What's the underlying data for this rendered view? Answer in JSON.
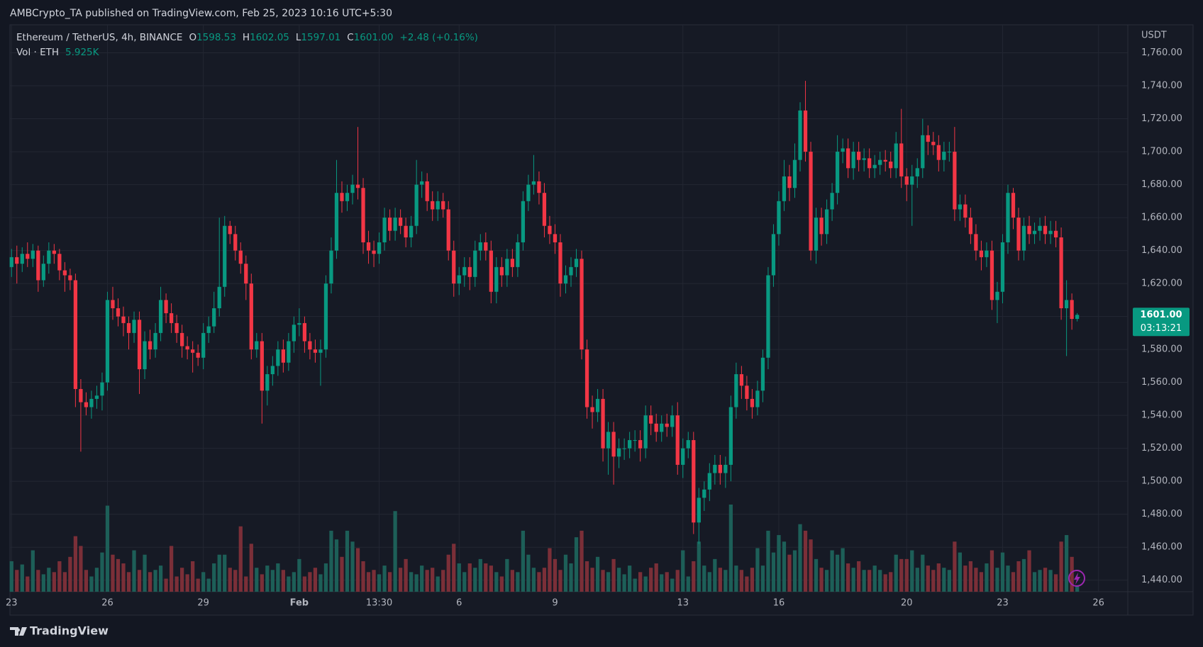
{
  "chart_data": {
    "type": "candlestick",
    "title": "AMBCrypto_TA published on TradingView.com, Feb 25, 2023 10:16 UTC+5:30",
    "symbol": "Ethereum / TetherUS, 4h, BINANCE",
    "ohlc_legend": [
      {
        "key": "O",
        "value": "1598.53"
      },
      {
        "key": "H",
        "value": "1602.05"
      },
      {
        "key": "L",
        "value": "1597.01"
      },
      {
        "key": "C",
        "value": "1601.00"
      }
    ],
    "change": "+2.48 (+0.16%)",
    "volume_title": "Vol · ETH",
    "volume_value": "5.925K",
    "currency": "USDT",
    "last_price_label": "1601.00",
    "countdown": "03:13:21",
    "brand": "TradingView",
    "up_color": "#089981",
    "down_color": "#f23645",
    "volume_up_color": "#1d5f58",
    "volume_down_color": "#7b2f38",
    "grid": true,
    "xlim": [
      -0.3,
      209.5
    ],
    "xticks": [
      {
        "value": 0,
        "label": "23"
      },
      {
        "value": 18,
        "label": "26"
      },
      {
        "value": 36,
        "label": "29"
      },
      {
        "value": 54,
        "label": "Feb"
      },
      {
        "value": 69,
        "label": "13:30"
      },
      {
        "value": 84,
        "label": "6"
      },
      {
        "value": 102,
        "label": "9"
      },
      {
        "value": 126,
        "label": "13"
      },
      {
        "value": 144,
        "label": "16"
      },
      {
        "value": 168,
        "label": "20"
      },
      {
        "value": 186,
        "label": "23"
      },
      {
        "value": 204,
        "label": "26"
      }
    ],
    "ylim": [
      1433,
      1777
    ],
    "yticks": [
      {
        "value": 1440,
        "label": "1,440.00"
      },
      {
        "value": 1460,
        "label": "1,460.00"
      },
      {
        "value": 1480,
        "label": "1,480.00"
      },
      {
        "value": 1500,
        "label": "1,500.00"
      },
      {
        "value": 1520,
        "label": "1,520.00"
      },
      {
        "value": 1540,
        "label": "1,540.00"
      },
      {
        "value": 1560,
        "label": "1,560.00"
      },
      {
        "value": 1580,
        "label": "1,580.00"
      },
      {
        "value": 1600,
        "label": "1,600.00"
      },
      {
        "value": 1620,
        "label": "1,620.00"
      },
      {
        "value": 1640,
        "label": "1,640.00"
      },
      {
        "value": 1660,
        "label": "1,660.00"
      },
      {
        "value": 1680,
        "label": "1,680.00"
      },
      {
        "value": 1700,
        "label": "1,700.00"
      },
      {
        "value": 1720,
        "label": "1,720.00"
      },
      {
        "value": 1740,
        "label": "1,740.00"
      },
      {
        "value": 1760,
        "label": "1,760.00"
      }
    ],
    "open": [
      1630,
      1636,
      1632,
      1638,
      1635,
      1640,
      1622,
      1632,
      1640,
      1638,
      1628,
      1625,
      1622,
      1556,
      1548,
      1545,
      1550,
      1552,
      1560,
      1610,
      1605,
      1600,
      1596,
      1590,
      1598,
      1568,
      1585,
      1580,
      1590,
      1610,
      1602,
      1596,
      1590,
      1582,
      1580,
      1578,
      1575,
      1590,
      1594,
      1605,
      1618,
      1655,
      1650,
      1640,
      1632,
      1620,
      1580,
      1585,
      1555,
      1565,
      1570,
      1580,
      1572,
      1585,
      1595,
      1596,
      1585,
      1580,
      1578,
      1580,
      1620,
      1640,
      1675,
      1670,
      1675,
      1680,
      1678,
      1645,
      1640,
      1638,
      1645,
      1660,
      1652,
      1660,
      1655,
      1648,
      1655,
      1680,
      1682,
      1670,
      1665,
      1670,
      1665,
      1640,
      1620,
      1625,
      1630,
      1624,
      1640,
      1645,
      1640,
      1615,
      1630,
      1625,
      1635,
      1630,
      1645,
      1670,
      1680,
      1682,
      1675,
      1655,
      1650,
      1645,
      1620,
      1625,
      1630,
      1635,
      1580,
      1545,
      1542,
      1550,
      1520,
      1530,
      1515,
      1520,
      1520,
      1525,
      1525,
      1520,
      1540,
      1535,
      1530,
      1535,
      1533,
      1540,
      1510,
      1520,
      1525,
      1475,
      1490,
      1495,
      1505,
      1510,
      1505,
      1510,
      1545,
      1565,
      1558,
      1550,
      1545,
      1555,
      1575,
      1625,
      1650,
      1670,
      1685,
      1678,
      1695,
      1725,
      1700,
      1640,
      1660,
      1650,
      1665,
      1675,
      1700,
      1702,
      1690,
      1700,
      1695,
      1696,
      1690,
      1692,
      1695,
      1694,
      1690,
      1705,
      1685,
      1680,
      1685,
      1690,
      1710,
      1706,
      1704,
      1695,
      1700,
      1700,
      1665,
      1668,
      1660,
      1650,
      1640,
      1636,
      1640,
      1610,
      1615,
      1645,
      1675,
      1660,
      1640,
      1655,
      1650,
      1652,
      1655,
      1650,
      1652,
      1648,
      1605,
      1610,
      1598.53
    ],
    "high": [
      1641,
      1643,
      1642,
      1645,
      1644,
      1643,
      1637,
      1645,
      1644,
      1641,
      1633,
      1629,
      1626,
      1562,
      1554,
      1555,
      1558,
      1566,
      1615,
      1618,
      1611,
      1606,
      1600,
      1603,
      1603,
      1591,
      1592,
      1596,
      1618,
      1614,
      1608,
      1601,
      1595,
      1588,
      1585,
      1583,
      1596,
      1600,
      1615,
      1660,
      1661,
      1658,
      1655,
      1645,
      1637,
      1626,
      1590,
      1590,
      1570,
      1576,
      1585,
      1586,
      1590,
      1600,
      1605,
      1600,
      1590,
      1586,
      1586,
      1625,
      1648,
      1695,
      1682,
      1680,
      1686,
      1715,
      1684,
      1652,
      1646,
      1651,
      1666,
      1665,
      1666,
      1665,
      1660,
      1661,
      1695,
      1688,
      1687,
      1676,
      1676,
      1675,
      1670,
      1646,
      1630,
      1636,
      1636,
      1646,
      1650,
      1651,
      1646,
      1636,
      1636,
      1641,
      1641,
      1650,
      1676,
      1686,
      1698,
      1688,
      1681,
      1661,
      1656,
      1650,
      1631,
      1636,
      1641,
      1640,
      1586,
      1552,
      1556,
      1556,
      1536,
      1536,
      1526,
      1526,
      1530,
      1531,
      1531,
      1546,
      1546,
      1541,
      1540,
      1541,
      1546,
      1548,
      1526,
      1530,
      1530,
      1496,
      1500,
      1511,
      1516,
      1516,
      1515,
      1552,
      1572,
      1570,
      1564,
      1556,
      1561,
      1580,
      1630,
      1656,
      1676,
      1695,
      1692,
      1705,
      1730,
      1743,
      1706,
      1666,
      1666,
      1671,
      1681,
      1710,
      1708,
      1708,
      1706,
      1706,
      1702,
      1702,
      1698,
      1700,
      1701,
      1700,
      1712,
      1726,
      1690,
      1692,
      1696,
      1720,
      1716,
      1712,
      1710,
      1706,
      1706,
      1715,
      1674,
      1674,
      1666,
      1656,
      1646,
      1645,
      1646,
      1621,
      1650,
      1680,
      1678,
      1666,
      1660,
      1661,
      1657,
      1660,
      1661,
      1658,
      1658,
      1654,
      1622,
      1614,
      1602.05
    ],
    "low": [
      1624,
      1620,
      1627,
      1630,
      1630,
      1615,
      1618,
      1626,
      1632,
      1622,
      1615,
      1616,
      1545,
      1518,
      1540,
      1538,
      1544,
      1543,
      1555,
      1598,
      1594,
      1588,
      1580,
      1584,
      1553,
      1562,
      1574,
      1575,
      1585,
      1596,
      1590,
      1584,
      1575,
      1574,
      1566,
      1570,
      1568,
      1584,
      1590,
      1600,
      1612,
      1644,
      1634,
      1626,
      1610,
      1574,
      1575,
      1535,
      1546,
      1558,
      1564,
      1566,
      1567,
      1578,
      1588,
      1578,
      1574,
      1572,
      1558,
      1575,
      1614,
      1635,
      1663,
      1664,
      1668,
      1671,
      1638,
      1632,
      1630,
      1632,
      1640,
      1646,
      1646,
      1650,
      1642,
      1642,
      1650,
      1672,
      1664,
      1658,
      1658,
      1660,
      1634,
      1612,
      1613,
      1618,
      1616,
      1618,
      1634,
      1634,
      1608,
      1608,
      1618,
      1618,
      1624,
      1624,
      1640,
      1664,
      1674,
      1668,
      1648,
      1644,
      1638,
      1612,
      1614,
      1618,
      1624,
      1574,
      1538,
      1532,
      1536,
      1512,
      1504,
      1498,
      1508,
      1513,
      1514,
      1518,
      1512,
      1514,
      1528,
      1524,
      1524,
      1527,
      1527,
      1504,
      1502,
      1514,
      1468,
      1462,
      1482,
      1488,
      1498,
      1498,
      1496,
      1500,
      1538,
      1550,
      1543,
      1538,
      1540,
      1548,
      1568,
      1618,
      1643,
      1664,
      1670,
      1672,
      1688,
      1694,
      1634,
      1632,
      1643,
      1644,
      1658,
      1668,
      1693,
      1684,
      1683,
      1688,
      1688,
      1684,
      1684,
      1686,
      1688,
      1684,
      1684,
      1678,
      1670,
      1655,
      1678,
      1684,
      1698,
      1698,
      1688,
      1688,
      1694,
      1658,
      1658,
      1654,
      1644,
      1634,
      1628,
      1630,
      1604,
      1596,
      1608,
      1638,
      1653,
      1634,
      1634,
      1644,
      1644,
      1646,
      1644,
      1644,
      1642,
      1598,
      1576,
      1592,
      1597.01
    ],
    "close": [
      1636,
      1632,
      1638,
      1635,
      1640,
      1622,
      1632,
      1640,
      1638,
      1628,
      1625,
      1622,
      1556,
      1548,
      1545,
      1550,
      1552,
      1560,
      1610,
      1605,
      1600,
      1596,
      1590,
      1598,
      1568,
      1585,
      1580,
      1590,
      1610,
      1602,
      1596,
      1590,
      1582,
      1580,
      1578,
      1575,
      1590,
      1594,
      1605,
      1618,
      1655,
      1650,
      1640,
      1632,
      1620,
      1580,
      1585,
      1555,
      1565,
      1570,
      1580,
      1572,
      1585,
      1595,
      1596,
      1585,
      1580,
      1578,
      1580,
      1620,
      1640,
      1675,
      1670,
      1675,
      1680,
      1678,
      1645,
      1640,
      1638,
      1645,
      1660,
      1652,
      1660,
      1655,
      1648,
      1655,
      1680,
      1682,
      1670,
      1665,
      1670,
      1665,
      1640,
      1620,
      1625,
      1630,
      1624,
      1640,
      1645,
      1640,
      1615,
      1630,
      1625,
      1635,
      1630,
      1645,
      1670,
      1680,
      1682,
      1675,
      1655,
      1650,
      1645,
      1620,
      1625,
      1630,
      1635,
      1580,
      1545,
      1542,
      1550,
      1520,
      1530,
      1515,
      1520,
      1520,
      1525,
      1525,
      1520,
      1540,
      1535,
      1530,
      1535,
      1533,
      1540,
      1510,
      1520,
      1525,
      1475,
      1490,
      1495,
      1505,
      1510,
      1505,
      1510,
      1545,
      1565,
      1558,
      1550,
      1545,
      1555,
      1575,
      1625,
      1650,
      1670,
      1685,
      1678,
      1695,
      1725,
      1700,
      1640,
      1660,
      1650,
      1665,
      1675,
      1700,
      1702,
      1690,
      1700,
      1695,
      1696,
      1690,
      1692,
      1695,
      1694,
      1690,
      1705,
      1685,
      1680,
      1685,
      1690,
      1710,
      1706,
      1704,
      1695,
      1700,
      1700,
      1665,
      1668,
      1660,
      1650,
      1640,
      1636,
      1640,
      1610,
      1615,
      1645,
      1675,
      1660,
      1640,
      1655,
      1650,
      1652,
      1655,
      1650,
      1652,
      1648,
      1605,
      1610,
      1598.53,
      1601
    ],
    "volume": [
      28000,
      20000,
      25000,
      14000,
      38000,
      20000,
      16000,
      22000,
      18000,
      28000,
      18000,
      32000,
      51000,
      42000,
      20000,
      14000,
      22000,
      36000,
      79000,
      34000,
      30000,
      26000,
      18000,
      38000,
      20000,
      34000,
      18000,
      20000,
      24000,
      12000,
      42000,
      14000,
      22000,
      16000,
      28000,
      12000,
      18000,
      12000,
      26000,
      34000,
      34000,
      22000,
      20000,
      60000,
      14000,
      44000,
      22000,
      16000,
      24000,
      20000,
      26000,
      20000,
      14000,
      18000,
      30000,
      14000,
      18000,
      22000,
      16000,
      26000,
      56000,
      48000,
      32000,
      56000,
      46000,
      40000,
      28000,
      18000,
      20000,
      16000,
      24000,
      18000,
      74000,
      22000,
      30000,
      18000,
      16000,
      24000,
      20000,
      22000,
      14000,
      20000,
      34000,
      44000,
      26000,
      18000,
      26000,
      22000,
      30000,
      26000,
      24000,
      18000,
      14000,
      30000,
      20000,
      18000,
      56000,
      34000,
      22000,
      18000,
      22000,
      40000,
      30000,
      20000,
      34000,
      26000,
      50000,
      56000,
      28000,
      22000,
      32000,
      20000,
      18000,
      30000,
      22000,
      16000,
      24000,
      12000,
      18000,
      14000,
      22000,
      26000,
      16000,
      18000,
      12000,
      20000,
      38000,
      14000,
      28000,
      46000,
      24000,
      18000,
      30000,
      22000,
      20000,
      80000,
      24000,
      20000,
      14000,
      22000,
      40000,
      24000,
      56000,
      36000,
      52000,
      46000,
      34000,
      38000,
      62000,
      56000,
      48000,
      30000,
      22000,
      20000,
      38000,
      34000,
      40000,
      26000,
      22000,
      28000,
      20000,
      20000,
      24000,
      20000,
      16000,
      18000,
      34000,
      30000,
      30000,
      38000,
      22000,
      34000,
      24000,
      20000,
      26000,
      22000,
      20000,
      46000,
      36000,
      24000,
      28000,
      22000,
      18000,
      26000,
      38000,
      22000,
      36000,
      24000,
      18000,
      28000,
      30000,
      38000,
      18000,
      20000,
      22000,
      20000,
      16000,
      46000,
      52000,
      32000,
      5925
    ]
  }
}
